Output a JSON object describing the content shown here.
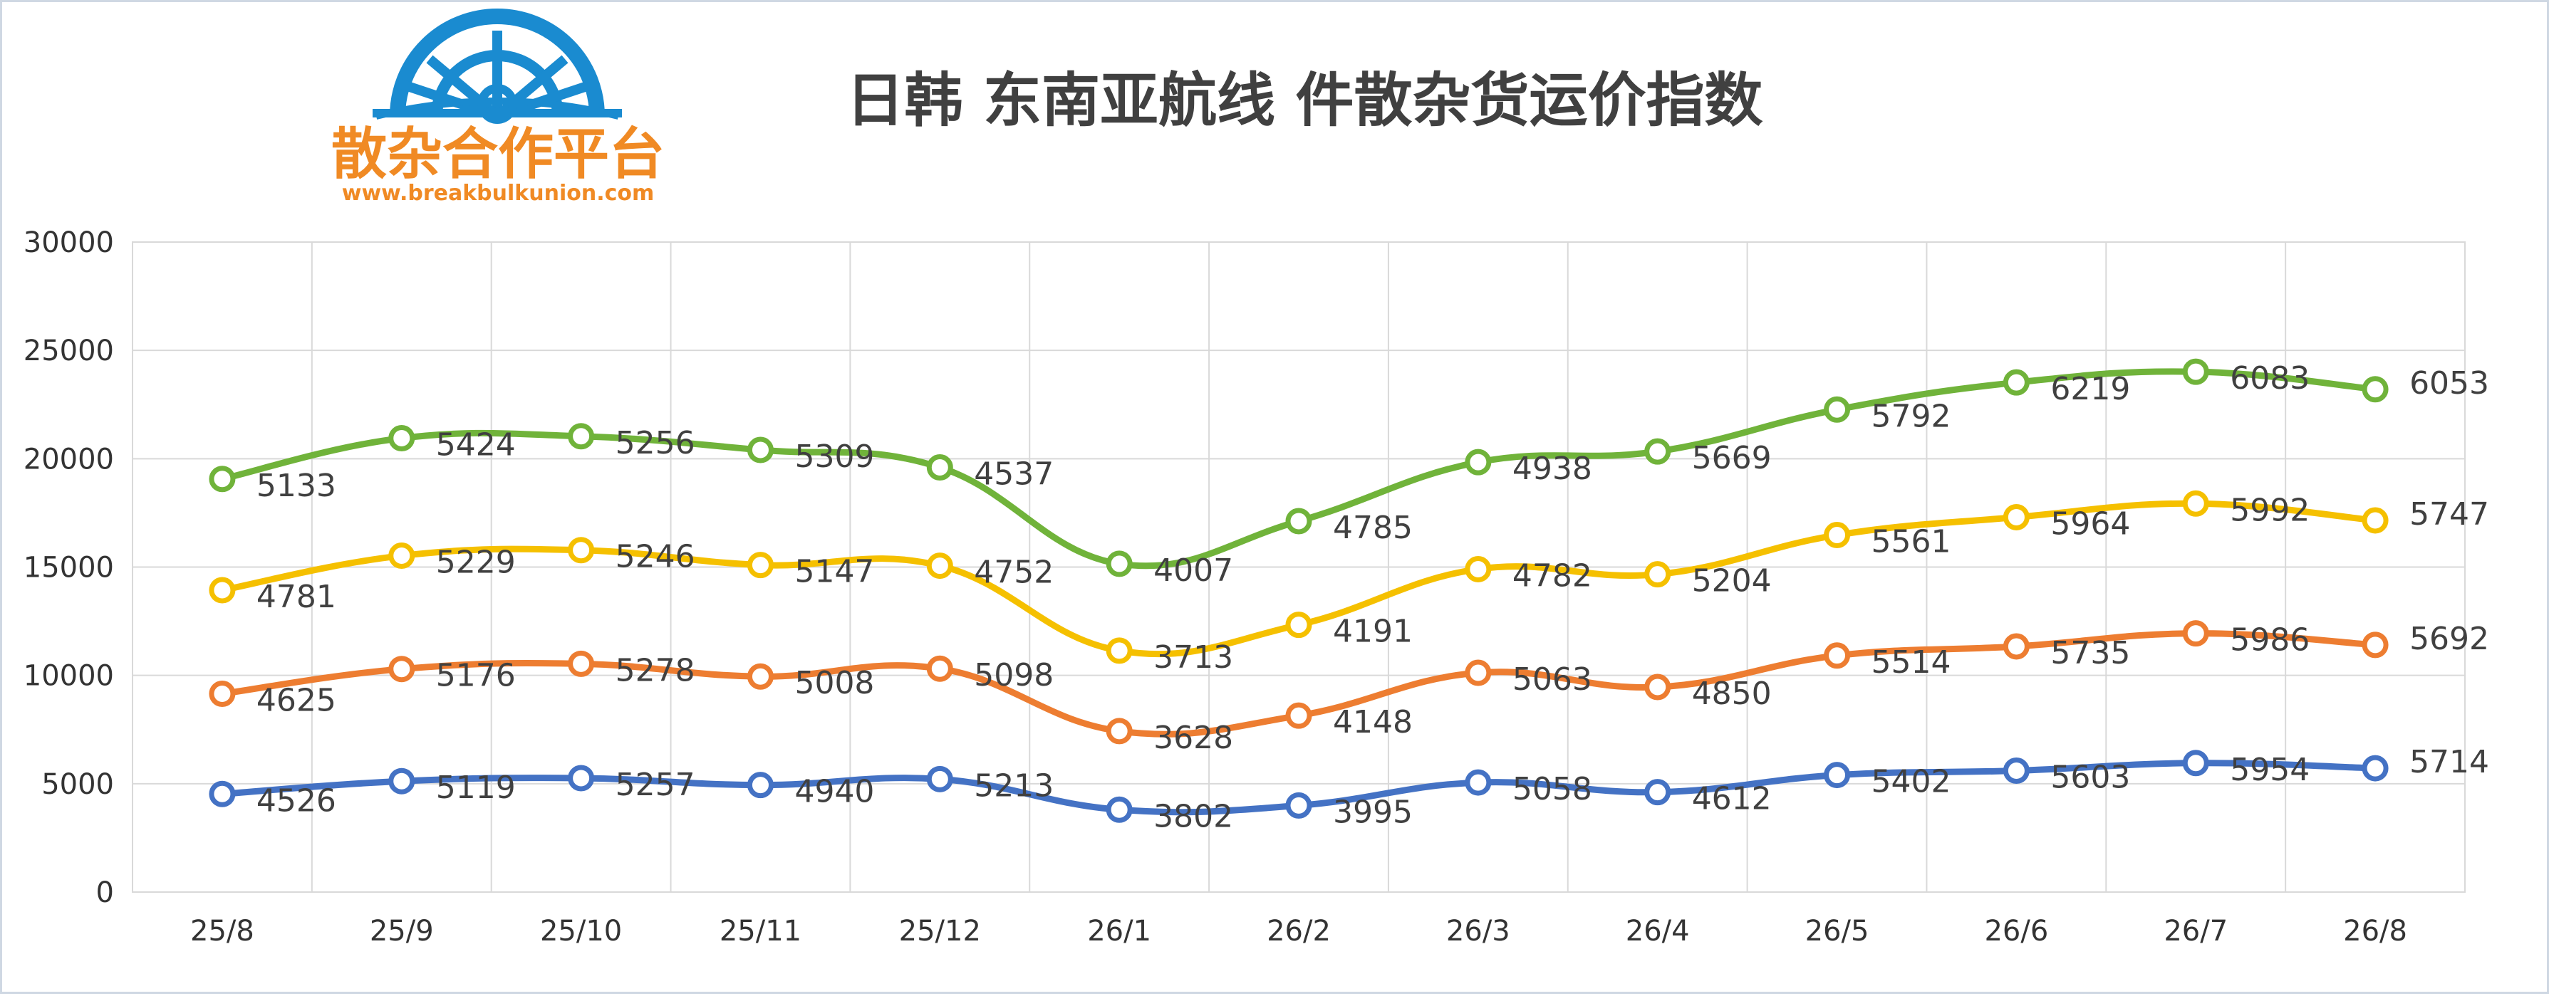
{
  "chart_data": {
    "type": "line",
    "title": "日韩 东南亚航线 件散杂货运价指数",
    "xlabel": "",
    "ylabel": "",
    "categories": [
      "25/8",
      "25/9",
      "25/10",
      "25/11",
      "25/12",
      "26/1",
      "26/2",
      "26/3",
      "26/4",
      "26/5",
      "26/6",
      "26/7",
      "26/8"
    ],
    "ylim": [
      0,
      30000
    ],
    "yticks": [
      "0",
      "5000",
      "10000",
      "15000",
      "20000",
      "25000",
      "30000"
    ],
    "grid": true,
    "legend": "none",
    "stacked": true,
    "series": [
      {
        "color": "#4472c4",
        "values": [
          4526,
          5119,
          5257,
          4940,
          5213,
          3802,
          3995,
          5058,
          4612,
          5402,
          5603,
          5954,
          5714
        ]
      },
      {
        "color": "#ed7d31",
        "values": [
          4625,
          5176,
          5278,
          5008,
          5098,
          3628,
          4148,
          5063,
          4850,
          5514,
          5735,
          5986,
          5692
        ]
      },
      {
        "color": "#f5c000",
        "values": [
          4781,
          5229,
          5246,
          5147,
          4752,
          3713,
          4191,
          4782,
          5204,
          5561,
          5964,
          5992,
          5747
        ]
      },
      {
        "color": "#70b33a",
        "values": [
          5133,
          5424,
          5256,
          5309,
          4537,
          4007,
          4785,
          4938,
          5669,
          5792,
          6219,
          6083,
          6053
        ]
      }
    ]
  },
  "logo": {
    "name": "散杂合作平台",
    "url": "www.breakbulkunion.com",
    "icon": "ship-wheel-icon",
    "text_color": "#f08a24",
    "icon_color": "#1a8bd0"
  }
}
